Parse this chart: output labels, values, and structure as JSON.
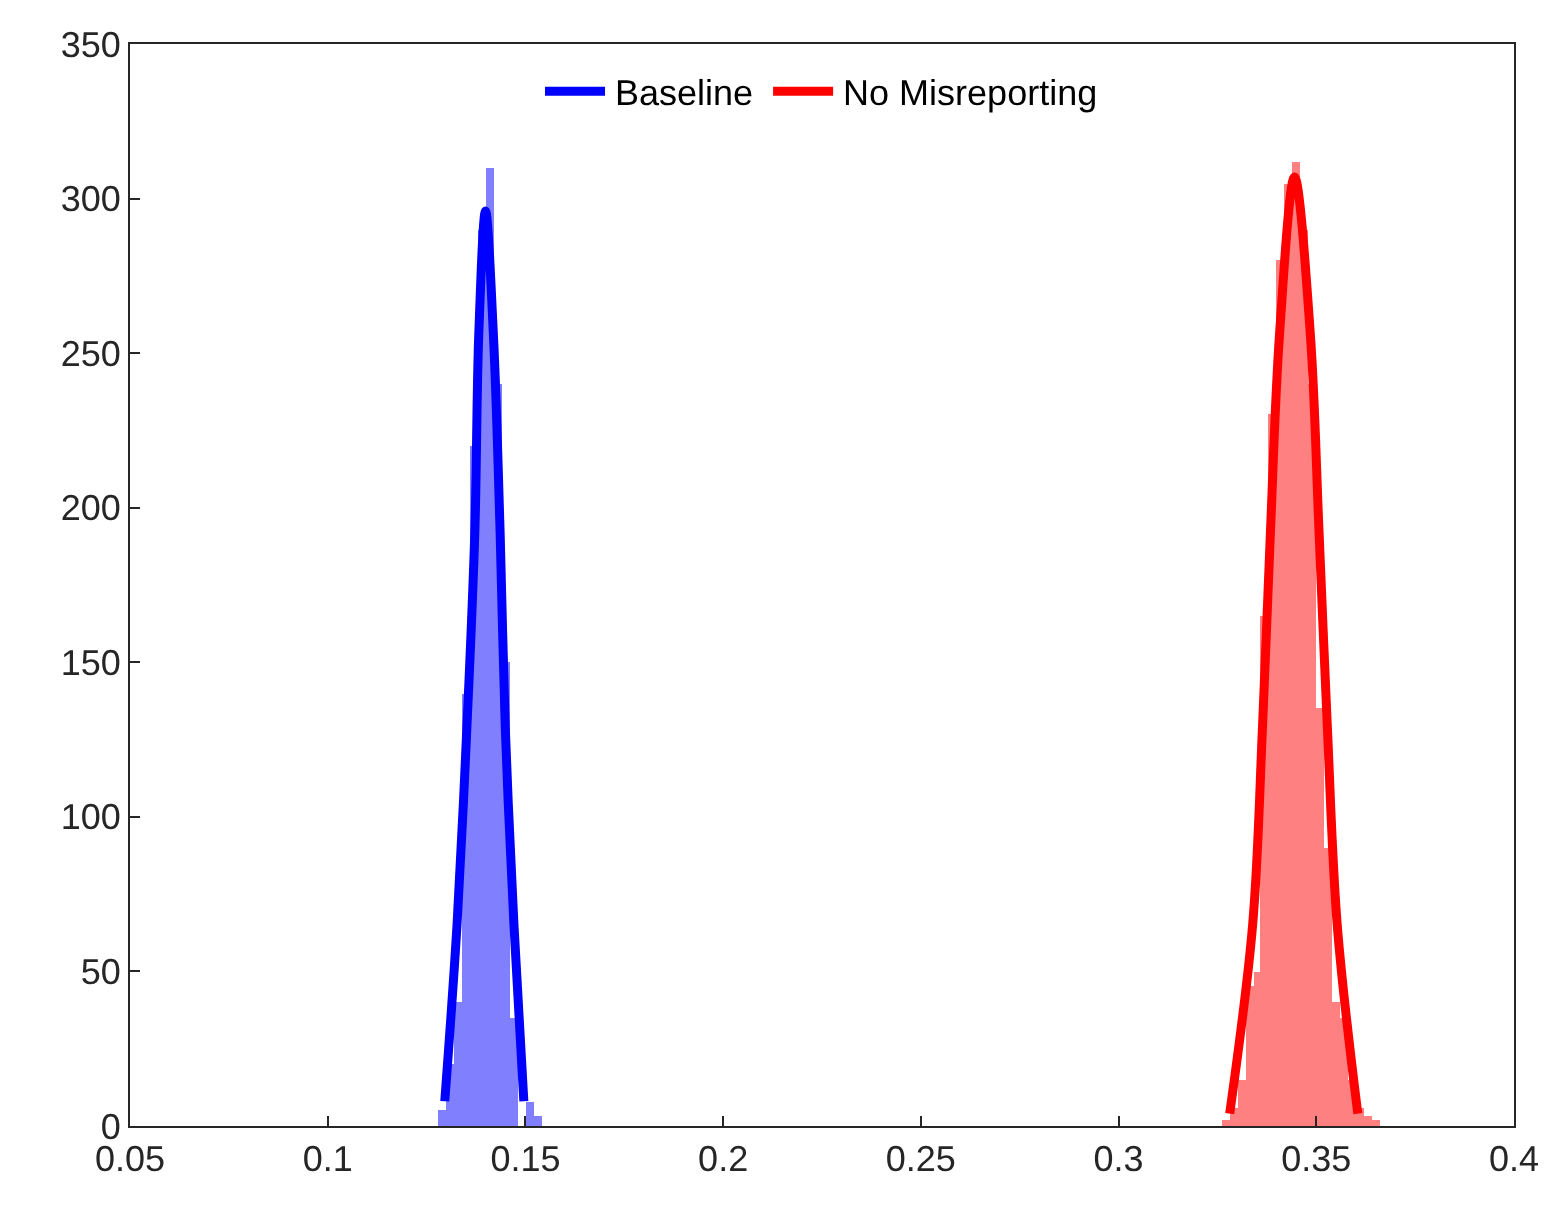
{
  "chart_data": {
    "type": "histogram",
    "series": [
      {
        "color": "#8080ff",
        "bins": [
          0.128,
          0.13,
          0.132,
          0.134,
          0.136,
          0.138,
          0.14,
          0.142,
          0.144,
          0.146,
          0.148,
          0.15,
          0.152,
          0.154
        ],
        "values": [
          5,
          20,
          40,
          140,
          220,
          290,
          310,
          240,
          150,
          35,
          null,
          8,
          3
        ]
      },
      {
        "color": "#ff8080",
        "bins": [
          0.326,
          0.328,
          0.33,
          0.332,
          0.334,
          0.336,
          0.338,
          0.34,
          0.342,
          0.344,
          0.346,
          0.348,
          0.35,
          0.352,
          0.354,
          0.356,
          0.358,
          0.36,
          0.362,
          0.364,
          0.366
        ],
        "values": [
          2,
          6,
          15,
          45,
          50,
          165,
          230,
          280,
          305,
          312,
          290,
          240,
          135,
          90,
          40,
          35,
          15,
          6,
          3,
          2
        ]
      },
      {
        "type": "line",
        "name": "Baseline",
        "color": "#0000ff",
        "x": [
          0.1296,
          0.1327,
          0.1352,
          0.1372,
          0.1382,
          0.1399,
          0.1419,
          0.1436,
          0.1449,
          0.1471,
          0.1496
        ],
        "values": [
          8,
          65,
          129,
          192,
          256,
          296,
          256,
          192,
          129,
          65,
          8
        ]
      },
      {
        "type": "line",
        "name": "No Misreporting",
        "color": "#ff0000",
        "x": [
          0.3281,
          0.3339,
          0.3364,
          0.3384,
          0.3407,
          0.3445,
          0.3485,
          0.3507,
          0.3528,
          0.3553,
          0.3605
        ],
        "values": [
          4,
          65,
          129,
          192,
          256,
          307,
          256,
          192,
          129,
          65,
          4
        ]
      }
    ],
    "xlim": [
      0.05,
      0.4
    ],
    "xticks": [
      0.05,
      0.1,
      0.15,
      0.2,
      0.25,
      0.3,
      0.35,
      0.4
    ],
    "ylim": [
      0,
      350
    ],
    "yticks": [
      0,
      50,
      100,
      150,
      200,
      250,
      300,
      350
    ],
    "legend": "top",
    "marker": "none",
    "line_style": "solid"
  }
}
